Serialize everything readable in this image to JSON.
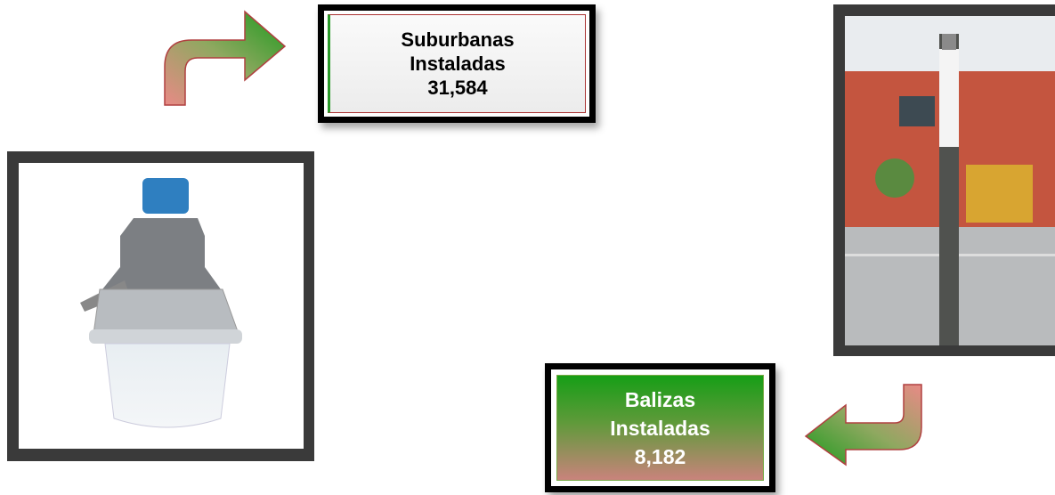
{
  "suburbanas": {
    "lines": [
      "Suburbanas",
      "Instaladas",
      "31,584"
    ]
  },
  "balizas": {
    "lines": [
      "Balizas",
      "Instaladas",
      "8,182"
    ]
  }
}
